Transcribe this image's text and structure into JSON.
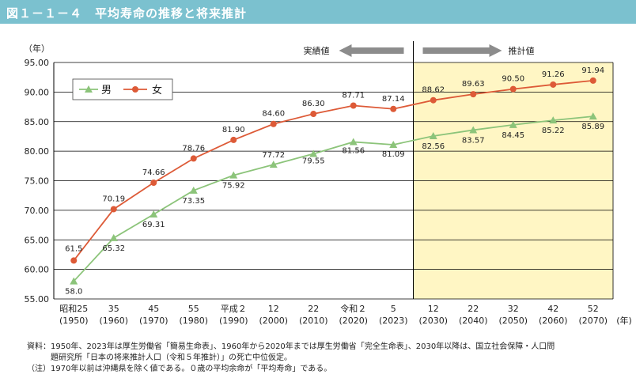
{
  "title": "図１－１－４　平均寿命の推移と将来推計",
  "colors": {
    "title_bg": "#7bc1cf",
    "male": "#8cc47a",
    "female": "#dd5a37",
    "projection_bg": "#fff6c4",
    "arrow": "#8c8c8c"
  },
  "chart_data": {
    "type": "line",
    "ylabel": "（年）",
    "ylim": [
      55,
      95
    ],
    "yticks": [
      "55.00",
      "60.00",
      "65.00",
      "70.00",
      "75.00",
      "80.00",
      "85.00",
      "90.00",
      "95.00"
    ],
    "x_unit": "(年)",
    "categories": [
      {
        "era": "昭和25",
        "year": "(1950)"
      },
      {
        "era": "35",
        "year": "(1960)"
      },
      {
        "era": "45",
        "year": "(1970)"
      },
      {
        "era": "55",
        "year": "(1980)"
      },
      {
        "era": "平成２",
        "year": "(1990)"
      },
      {
        "era": "12",
        "year": "(2000)"
      },
      {
        "era": "22",
        "year": "(2010)"
      },
      {
        "era": "令和２",
        "year": "(2020)"
      },
      {
        "era": "5",
        "year": "(2023)"
      },
      {
        "era": "12",
        "year": "(2030)"
      },
      {
        "era": "22",
        "year": "(2040)"
      },
      {
        "era": "32",
        "year": "(2050)"
      },
      {
        "era": "42",
        "year": "(2060)"
      },
      {
        "era": "52",
        "year": "(2070)"
      }
    ],
    "series": [
      {
        "name": "男",
        "marker": "triangle",
        "values": [
          58.0,
          65.32,
          69.31,
          73.35,
          75.92,
          77.72,
          79.55,
          81.56,
          81.09,
          82.56,
          83.57,
          84.45,
          85.22,
          85.89
        ],
        "labels": [
          "58.0",
          "65.32",
          "69.31",
          "73.35",
          "75.92",
          "77.72",
          "79.55",
          "81.56",
          "81.09",
          "82.56",
          "83.57",
          "84.45",
          "85.22",
          "85.89"
        ]
      },
      {
        "name": "女",
        "marker": "circle",
        "values": [
          61.5,
          70.19,
          74.66,
          78.76,
          81.9,
          84.6,
          86.3,
          87.71,
          87.14,
          88.62,
          89.63,
          90.5,
          91.26,
          91.94
        ],
        "labels": [
          "61.5",
          "70.19",
          "74.66",
          "78.76",
          "81.90",
          "84.60",
          "86.30",
          "87.71",
          "87.14",
          "88.62",
          "89.63",
          "90.50",
          "91.26",
          "91.94"
        ]
      }
    ],
    "actual_label": "実績値",
    "projection_label": "推計値",
    "projection_start_index": 9
  },
  "notes": {
    "source_line1": "資料：1950年、2023年は厚生労働省「簡易生命表」、1960年から2020年までは厚生労働省「完全生命表」、2030年以降は、国立社会保障・人口問",
    "source_line2": "題研究所「日本の将来推計人口（令和５年推計）」の死亡中位仮定。",
    "note_line": "（注）1970年以前は沖縄県を除く値である。０歳の平均余命が「平均寿命」である。"
  }
}
